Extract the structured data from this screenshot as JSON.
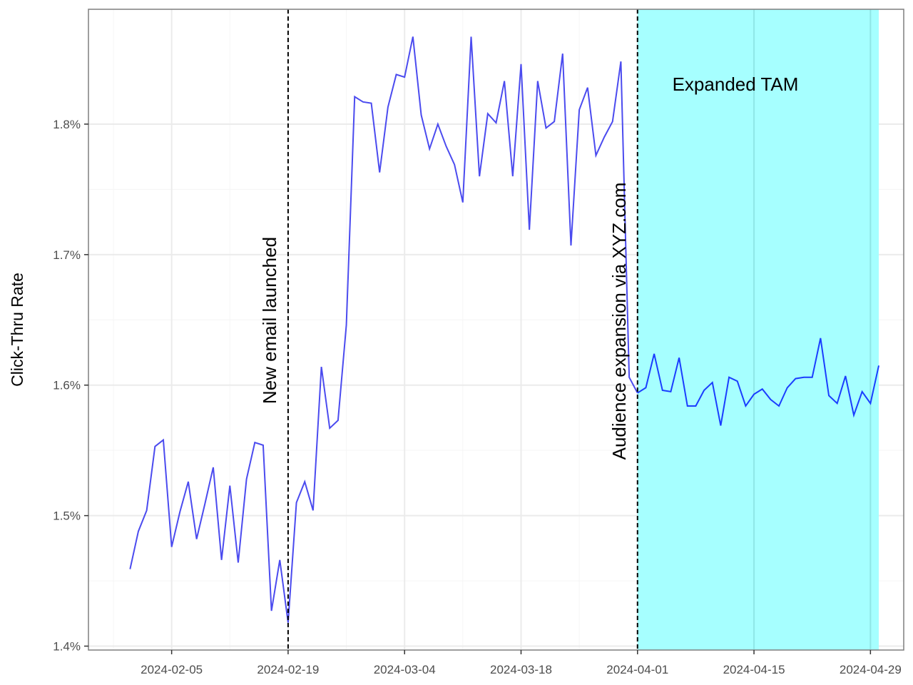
{
  "chart_data": {
    "type": "line",
    "title": "",
    "xlabel": "",
    "ylabel": "Click-Thru Rate",
    "x_tick_labels": [
      "2024-02-05",
      "2024-02-19",
      "2024-03-04",
      "2024-03-18",
      "2024-04-01",
      "2024-04-15",
      "2024-04-29"
    ],
    "y_tick_labels": [
      "1.4%",
      "1.5%",
      "1.6%",
      "1.7%",
      "1.8%"
    ],
    "x_range": [
      "2024-01-26",
      "2024-05-03"
    ],
    "y_range": [
      1.397,
      1.888
    ],
    "y_ticks": [
      1.4,
      1.5,
      1.6,
      1.7,
      1.8
    ],
    "grid": true,
    "colors": {
      "line_before": "#4b4bef",
      "line_after": "#1a3dff",
      "band": "#a6ffff",
      "vline": "#000000",
      "panel_border": "#7f7f7f",
      "grid": "#ebebeb"
    },
    "highlight_band": {
      "start": "2024-04-01",
      "end": "2024-04-30",
      "label": "Expanded TAM"
    },
    "annotations": [
      {
        "date": "2024-02-19",
        "label": "New email launched"
      },
      {
        "date": "2024-04-01",
        "label": "Audience expansion via XYZ.com"
      }
    ],
    "series": [
      {
        "start_date": "2024-01-31",
        "values": [
          1.459,
          1.488,
          1.504,
          1.553,
          1.558,
          1.476,
          1.503,
          1.526,
          1.482,
          1.509,
          1.537,
          1.466,
          1.523,
          1.464,
          1.528,
          1.556,
          1.554,
          1.427,
          1.466,
          1.418,
          1.51,
          1.526,
          1.504,
          1.614,
          1.567,
          1.573,
          1.646,
          1.821,
          1.817,
          1.816,
          1.763,
          1.813,
          1.838,
          1.836,
          1.867,
          1.807,
          1.781,
          1.8,
          1.783,
          1.769,
          1.74,
          1.867,
          1.76,
          1.808,
          1.801,
          1.833,
          1.76,
          1.846,
          1.719,
          1.833,
          1.797,
          1.802,
          1.854,
          1.707,
          1.811,
          1.828,
          1.776,
          1.79,
          1.802,
          1.848,
          1.606,
          1.594,
          1.598,
          1.624,
          1.596,
          1.595,
          1.621,
          1.584,
          1.584,
          1.596,
          1.602,
          1.569,
          1.606,
          1.603,
          1.584,
          1.593,
          1.597,
          1.589,
          1.584,
          1.598,
          1.605,
          1.606,
          1.606,
          1.636,
          1.592,
          1.586,
          1.607,
          1.577,
          1.595,
          1.586,
          1.615
        ]
      }
    ]
  }
}
